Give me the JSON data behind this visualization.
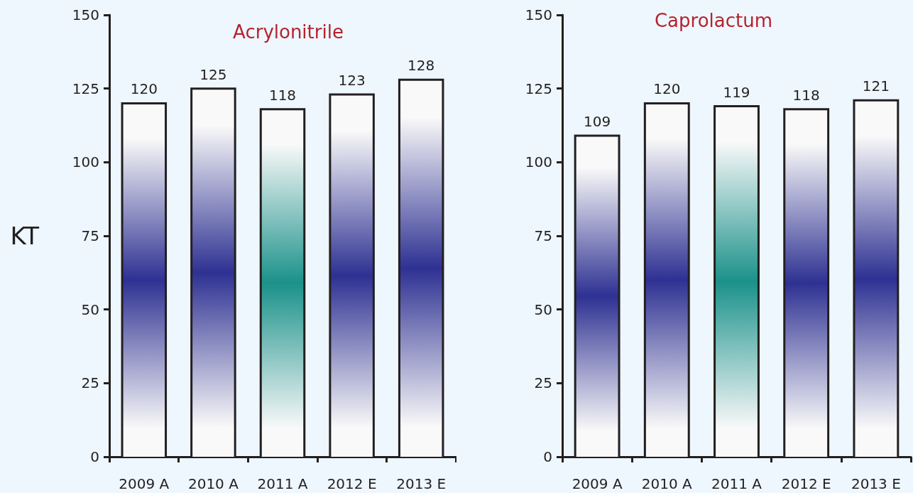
{
  "chart_data": [
    {
      "type": "bar",
      "title": "Acrylonitrile",
      "ylabel": "KT",
      "categories": [
        "2009 A",
        "2010 A",
        "2011 A",
        "2012 E",
        "2013 E"
      ],
      "values": [
        120,
        125,
        118,
        123,
        128
      ],
      "colors": [
        "#2e3192",
        "#2e3192",
        "#1b918a",
        "#2e3192",
        "#2e3192"
      ],
      "ylim": [
        0,
        150
      ],
      "yticks": [
        0,
        25,
        50,
        75,
        100,
        125,
        150
      ],
      "data_labels": true
    },
    {
      "type": "bar",
      "title": "Caprolactum",
      "categories": [
        "2009 A",
        "2010 A",
        "2011 A",
        "2012 E",
        "2013 E"
      ],
      "values": [
        109,
        120,
        119,
        118,
        121
      ],
      "colors": [
        "#2e3192",
        "#2e3192",
        "#1b918a",
        "#2e3192",
        "#2e3192"
      ],
      "ylim": [
        0,
        150
      ],
      "yticks": [
        0,
        25,
        50,
        75,
        100,
        125,
        150
      ],
      "data_labels": true
    }
  ]
}
